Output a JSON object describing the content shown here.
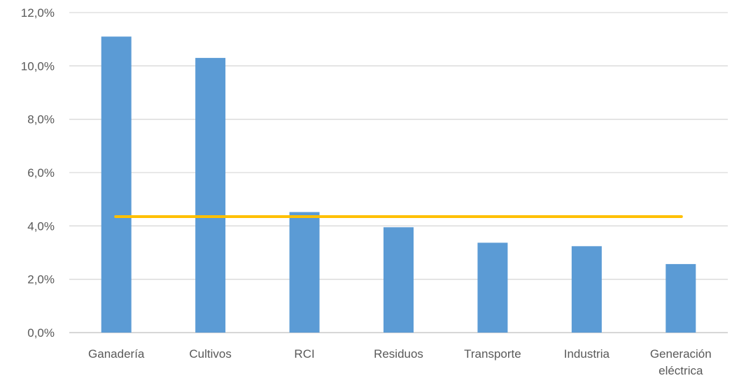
{
  "chart_data": {
    "type": "bar",
    "title": "",
    "xlabel": "",
    "ylabel": "",
    "categories": [
      [
        "Ganadería"
      ],
      [
        "Cultivos"
      ],
      [
        "RCI"
      ],
      [
        "Residuos"
      ],
      [
        "Transporte"
      ],
      [
        "Industria"
      ],
      [
        "Generación",
        "eléctrica"
      ]
    ],
    "series": [
      {
        "values": [
          11.1,
          10.3,
          4.52,
          3.95,
          3.37,
          3.24,
          2.57
        ],
        "color": "#5b9bd5"
      }
    ],
    "reference_line": {
      "value": 4.35,
      "color": "#ffc000"
    },
    "ylim": [
      0,
      12
    ],
    "yticks": [
      0,
      2,
      4,
      6,
      8,
      10,
      12
    ],
    "ytick_labels": [
      "0,0%",
      "2,0%",
      "4,0%",
      "6,0%",
      "8,0%",
      "10,0%",
      "12,0%"
    ],
    "grid": true,
    "gridline_color": "#d9d9d9",
    "legend": "none"
  }
}
